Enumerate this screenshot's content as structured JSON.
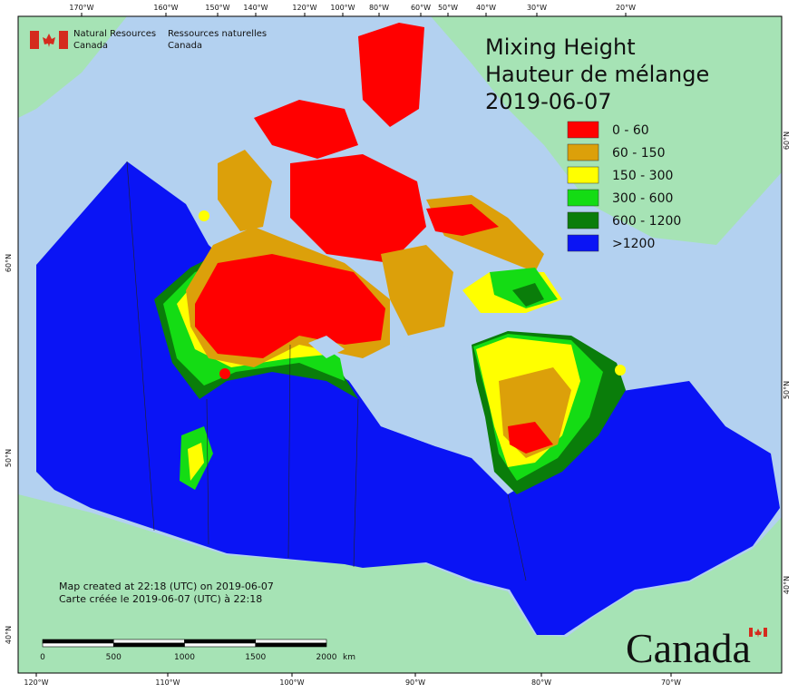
{
  "header": {
    "agency_en": [
      "Natural Resources",
      "Canada"
    ],
    "agency_fr": [
      "Ressources naturelles",
      "Canada"
    ]
  },
  "title": [
    "Mixing Height",
    "Hauteur de mélange",
    "2019-06-07"
  ],
  "legend": [
    {
      "label": "0 - 60",
      "color": "#ff0000"
    },
    {
      "label": "60 - 150",
      "color": "#dca00a"
    },
    {
      "label": "150 - 300",
      "color": "#ffff00"
    },
    {
      "label": "300 - 600",
      "color": "#14dc14"
    },
    {
      "label": "600 - 1200",
      "color": "#0a7d0a"
    },
    {
      "label": ">1200",
      "color": "#0a14f5"
    }
  ],
  "graticule": {
    "top": [
      "170°W",
      "160°W",
      "150°W",
      "140°W",
      "120°W",
      "100°W",
      "80°W",
      "60°W",
      "50°W",
      "40°W",
      "30°W",
      "20°W"
    ],
    "bottom": [
      "120°W",
      "110°W",
      "100°W",
      "90°W",
      "80°W",
      "70°W"
    ],
    "left": [
      "60°N",
      "50°N",
      "40°N"
    ],
    "right": [
      "60°N",
      "50°N",
      "40°N"
    ]
  },
  "footer": [
    "Map created at 22:18 (UTC) on 2019-06-07",
    "Carte créée le 2019-06-07 (UTC) à 22:18"
  ],
  "scale_bar": {
    "labels": [
      "0",
      "500",
      "1000",
      "1500",
      "2000"
    ],
    "unit": "km"
  },
  "wordmark": "Canada"
}
